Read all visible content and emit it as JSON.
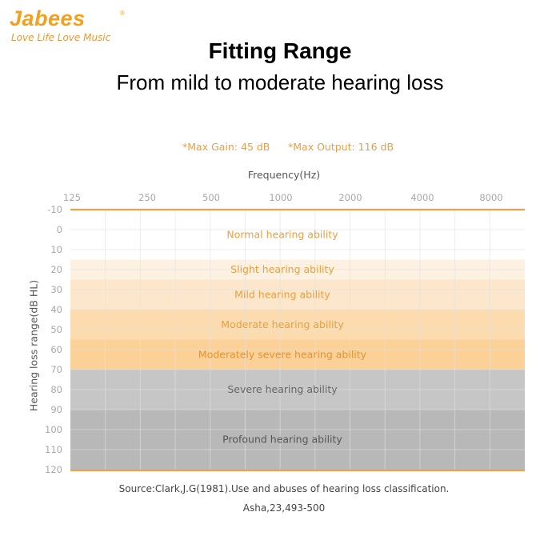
{
  "logo": {
    "brand": "Jabees",
    "registered": "®",
    "tagline": "Love Life Love Music",
    "color": "#f5a01a"
  },
  "header": {
    "title": "Fitting Range",
    "subtitle": "From mild to moderate hearing loss"
  },
  "notes": {
    "max_gain": "*Max Gain: 45 dB",
    "max_output": "*Max Output: 116 dB"
  },
  "source": {
    "line1": "Source:Clark,J.G(1981).Use and abuses of hearing loss classification.",
    "line2": "Asha,23,493-500"
  },
  "chart_data": {
    "type": "heatmap",
    "title": "Fitting Range",
    "xlabel": "Frequency(Hz)",
    "ylabel": "Hearing loss range(dB HL)",
    "x_tick_labels": [
      "125",
      "250",
      "500",
      "1000",
      "2000",
      "4000",
      "8000"
    ],
    "y_ticks": [
      -10,
      0,
      10,
      20,
      30,
      40,
      50,
      60,
      70,
      80,
      90,
      100,
      110,
      120
    ],
    "ylim": [
      -10,
      120
    ],
    "y_inverted": true,
    "grid": true,
    "bands": [
      {
        "label": "Normal hearing ability",
        "from": -10,
        "to": 15,
        "fill": "#ffffff",
        "text_color": "#e8a040"
      },
      {
        "label": "Slight hearing ability",
        "from": 15,
        "to": 25,
        "fill": "#fdf1e2",
        "text_color": "#e8a040"
      },
      {
        "label": "Mild hearing ability",
        "from": 25,
        "to": 40,
        "fill": "#fce7cc",
        "text_color": "#e8a040"
      },
      {
        "label": "Moderate hearing ability",
        "from": 40,
        "to": 55,
        "fill": "#fcdcae",
        "text_color": "#e8a040"
      },
      {
        "label": "Moderately severe hearing ability",
        "from": 55,
        "to": 70,
        "fill": "#fbd197",
        "text_color": "#e3952e"
      },
      {
        "label": "Severe hearing ability",
        "from": 70,
        "to": 90,
        "fill": "#c6c6c6",
        "text_color": "#666666"
      },
      {
        "label": "Profound hearing ability",
        "from": 90,
        "to": 120,
        "fill": "#b8b8b8",
        "text_color": "#555555"
      }
    ],
    "boundary_line_color": "#eba24a"
  }
}
